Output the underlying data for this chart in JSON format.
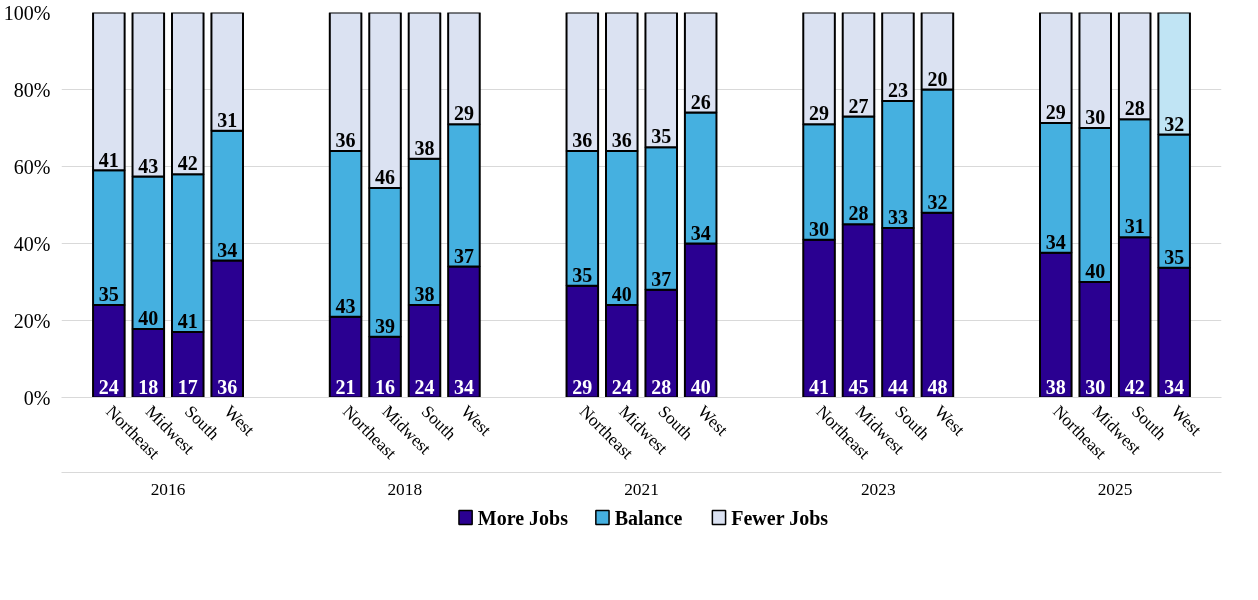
{
  "chart_data": {
    "type": "bar",
    "stacked": true,
    "legend": "bottom",
    "grid": "y",
    "categories": [
      "Northeast",
      "Midwest",
      "South",
      "West",
      "Northeast",
      "Midwest",
      "South",
      "West",
      "Northeast",
      "Midwest",
      "South",
      "West",
      "Northeast",
      "Midwest",
      "South",
      "West",
      "Northeast",
      "Midwest",
      "South",
      "West"
    ],
    "annotations": [
      "2016",
      "2018",
      "2021",
      "2023",
      "2025"
    ],
    "ylim": [
      0,
      100
    ],
    "yticks": [
      {
        "value": 0,
        "label": "0%"
      },
      {
        "value": 20,
        "label": "20%"
      },
      {
        "value": 40,
        "label": "40%"
      },
      {
        "value": 60,
        "label": "60%"
      },
      {
        "value": 80,
        "label": "80%"
      },
      {
        "value": 100,
        "label": "100%"
      }
    ],
    "series": [
      {
        "name": "More Jobs",
        "color": "#2a0091",
        "values": [
          24,
          17.8,
          17,
          35.6,
          21,
          15.8,
          24,
          34,
          29,
          24,
          28,
          40,
          41,
          45,
          44,
          48,
          37.6,
          30,
          41.6,
          33.7
        ],
        "value_labels": [
          "24",
          "18",
          "17",
          "36",
          "21",
          "16",
          "24",
          "34",
          "29",
          "24",
          "28",
          "40",
          "41",
          "45",
          "44",
          "48",
          "38",
          "30",
          "42",
          "34"
        ]
      },
      {
        "name": "Balance",
        "color": "#45b0e0",
        "values": [
          35,
          39.6,
          41,
          33.7,
          43,
          38.6,
          38,
          37,
          35,
          40,
          37,
          34,
          30,
          28,
          33,
          32,
          33.7,
          40,
          30.7,
          34.6
        ],
        "value_labels": [
          "35",
          "40",
          "41",
          "34",
          "43",
          "39",
          "38",
          "37",
          "35",
          "40",
          "37",
          "34",
          "30",
          "28",
          "33",
          "32",
          "34",
          "40",
          "31",
          "35"
        ]
      },
      {
        "name": "Fewer Jobs",
        "color": "#dbe2f2",
        "colors": [
          null,
          null,
          null,
          null,
          null,
          null,
          null,
          null,
          null,
          null,
          null,
          null,
          null,
          null,
          null,
          null,
          null,
          null,
          null,
          "#c0e4f4"
        ],
        "values": [
          41,
          42.6,
          42,
          30.7,
          36,
          45.6,
          38,
          29,
          36,
          36,
          35,
          26,
          29,
          27,
          23,
          20,
          28.7,
          30,
          27.7,
          31.7
        ],
        "value_labels": [
          "41",
          "43",
          "42",
          "31",
          "36",
          "46",
          "38",
          "29",
          "36",
          "36",
          "35",
          "26",
          "29",
          "27",
          "23",
          "20",
          "29",
          "30",
          "28",
          "32"
        ]
      }
    ]
  }
}
